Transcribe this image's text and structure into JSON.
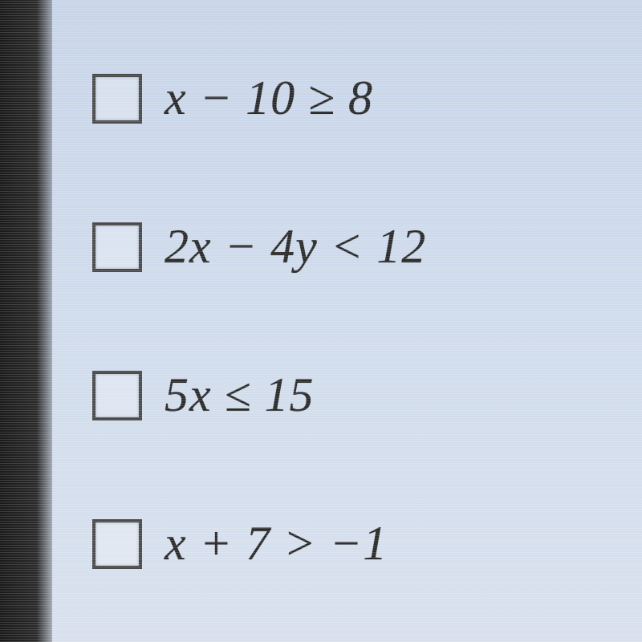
{
  "options": [
    {
      "expr": "x − 10 ≥ 8",
      "checked": false
    },
    {
      "expr": "2x − 4y < 12",
      "checked": false
    },
    {
      "expr": "5x ≤ 15",
      "checked": false
    },
    {
      "expr": "x + 7 > −1",
      "checked": false
    }
  ],
  "style": {
    "background_color": "#d0dcec",
    "text_color": "#2a2a2a",
    "checkbox_border_color": "#4a4a4a",
    "checkbox_size": 62,
    "font_size": 60,
    "left_band_color": "#1a1a1a"
  }
}
